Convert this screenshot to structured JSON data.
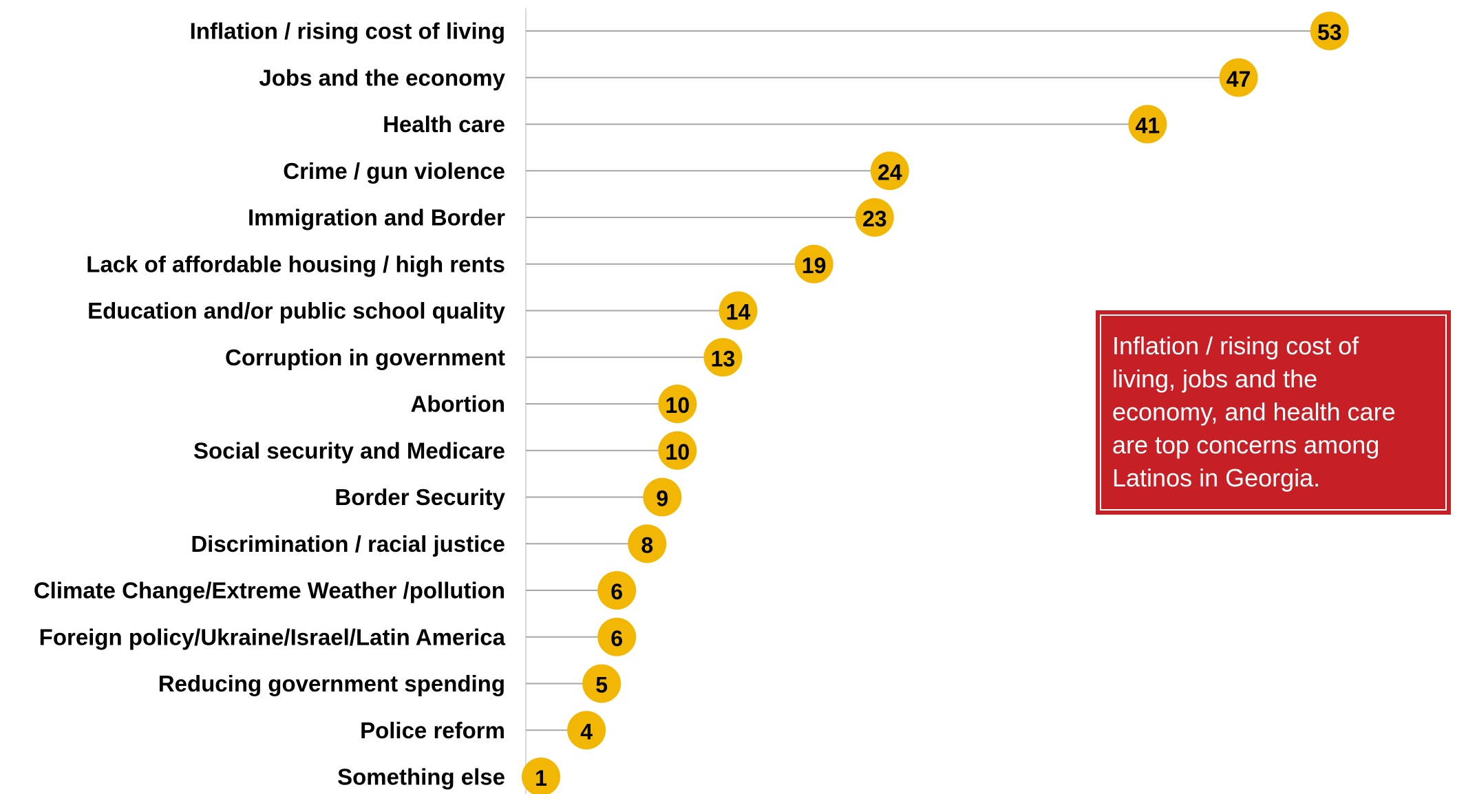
{
  "chart_data": {
    "type": "bar",
    "style": "lollipop",
    "orientation": "horizontal",
    "categories": [
      "Inflation / rising cost of living",
      "Jobs and the economy",
      "Health care",
      "Crime / gun violence",
      "Immigration and Border",
      "Lack of affordable housing / high rents",
      "Education and/or public school quality",
      "Corruption in government",
      "Abortion",
      "Social security and Medicare",
      "Border Security",
      "Discrimination / racial justice",
      "Climate Change/Extreme Weather /pollution",
      "Foreign policy/Ukraine/Israel/Latin America",
      "Reducing government spending",
      "Police reform",
      "Something else"
    ],
    "values": [
      53,
      47,
      41,
      24,
      23,
      19,
      14,
      13,
      10,
      10,
      9,
      8,
      6,
      6,
      5,
      4,
      1
    ],
    "title": "",
    "xlabel": "",
    "ylabel": "",
    "xlim": [
      0,
      61
    ],
    "grid": false,
    "legend": "none",
    "colors": {
      "marker": "#f2b705",
      "stem": "#a6a6a6",
      "axis": "#d9d9d9"
    }
  },
  "annotation": {
    "lines": [
      "Inflation / rising cost of",
      "living, jobs and the",
      "economy, and health care",
      "are top concerns among",
      "Latinos in Georgia."
    ],
    "background": "#c62026"
  }
}
